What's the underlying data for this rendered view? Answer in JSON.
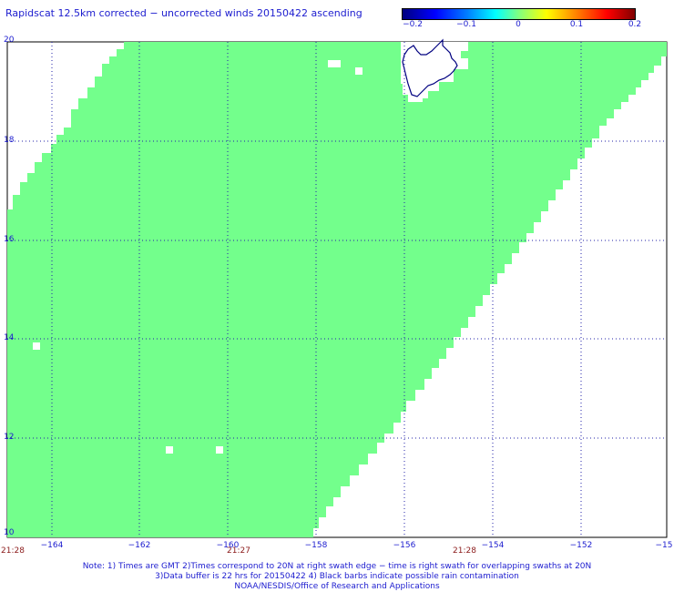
{
  "title": "Rapidscat 12.5km corrected − uncorrected winds 20150422 ascending",
  "colorbar": {
    "ticks": [
      "−0.2",
      "−0.1",
      "0",
      "0.1",
      "0.2"
    ]
  },
  "lat_labels": [
    "20",
    "18",
    "16",
    "14",
    "12",
    "10"
  ],
  "lon_labels": [
    "−164",
    "−162",
    "−160",
    "−158",
    "−156",
    "−154",
    "−152",
    "−15"
  ],
  "time_labels": [
    "21:28",
    "21:27",
    "21:28"
  ],
  "notes": [
    "Note: 1) Times are GMT 2)Times correspond to 20N at right swath edge − time is right swath for overlapping swaths at 20N",
    "3)Data buffer is 22 hrs for 20150422 4) Black barbs indicate possible rain contamination",
    "NOAA/NESDIS/Office of Research and Applications"
  ],
  "colors": {
    "swath": "#73ff8c",
    "grid": "#2222aa",
    "coast": "#000080",
    "text": "#1c1ccf",
    "time_text": "#8b1a1a"
  },
  "map_extent": {
    "lon_range": [
      -165,
      -150
    ],
    "lat_range": [
      10,
      20
    ]
  }
}
